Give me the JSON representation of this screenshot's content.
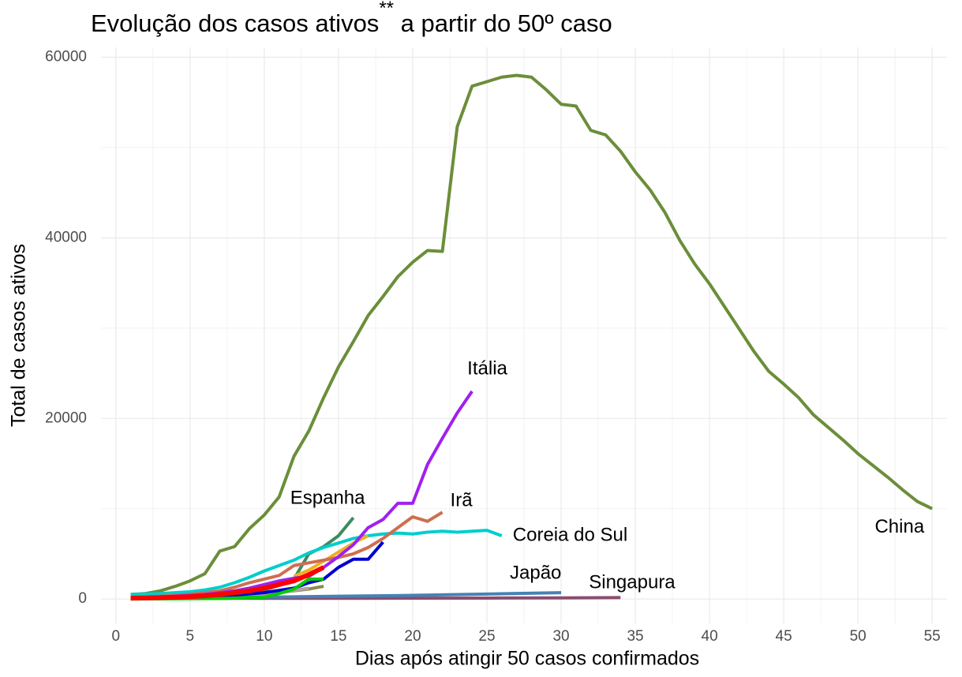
{
  "chart_data": {
    "type": "line",
    "title": [
      "Evolução dos casos ativos",
      "**",
      " a partir do 50º caso"
    ],
    "x_label": "Dias após atingir 50 casos confirmados",
    "y_label": "Total de casos ativos",
    "xlim": [
      -1,
      56
    ],
    "ylim": [
      -2700,
      61100
    ],
    "xticks": [
      0,
      5,
      10,
      15,
      20,
      25,
      30,
      35,
      40,
      45,
      50,
      55
    ],
    "yticks": [
      0,
      20000,
      40000,
      60000
    ],
    "grid": true,
    "series": [
      {
        "name": "China",
        "color": "#6b8e3a",
        "x": [
          1,
          2,
          3,
          4,
          5,
          6,
          7,
          8,
          9,
          10,
          11,
          12,
          13,
          14,
          15,
          16,
          17,
          18,
          19,
          20,
          21,
          22,
          23,
          24,
          25,
          26,
          27,
          28,
          29,
          30,
          31,
          32,
          33,
          34,
          35,
          36,
          37,
          38,
          39,
          40,
          41,
          42,
          43,
          44,
          45,
          46,
          47,
          48,
          49,
          50,
          51,
          52,
          53,
          54,
          55
        ],
        "values": [
          500,
          600,
          900,
          1400,
          2000,
          2800,
          5300,
          5800,
          7800,
          9300,
          11300,
          15800,
          18600,
          22300,
          25700,
          28500,
          31400,
          33500,
          35700,
          37300,
          38600,
          38500,
          52300,
          56800,
          57300,
          57800,
          58000,
          57800,
          56400,
          54800,
          54600,
          51900,
          51400,
          49600,
          47300,
          45300,
          42800,
          39700,
          37100,
          34900,
          32400,
          29900,
          27400,
          25200,
          23800,
          22300,
          20400,
          19000,
          17600,
          16100,
          14800,
          13500,
          12100,
          10800,
          10000
        ]
      },
      {
        "color": "#8b8b4c",
        "x": [
          1,
          2,
          3,
          4,
          5,
          6,
          7,
          8,
          9,
          10,
          11,
          12,
          13,
          14
        ],
        "values": [
          0,
          20,
          40,
          60,
          100,
          150,
          200,
          300,
          400,
          500,
          700,
          900,
          1100,
          1400
        ]
      },
      {
        "color": "#b0a0a0",
        "x": [
          1,
          3,
          5,
          7,
          9,
          11,
          13
        ],
        "values": [
          0,
          50,
          100,
          200,
          400,
          700,
          1200
        ]
      },
      {
        "name": "Singapura",
        "color": "#8b4c6f",
        "x": [
          1,
          5,
          10,
          15,
          20,
          25,
          30,
          34
        ],
        "values": [
          50,
          60,
          70,
          80,
          90,
          100,
          120,
          150
        ]
      },
      {
        "name": "Japão",
        "color": "#4682b4",
        "x": [
          1,
          5,
          10,
          15,
          20,
          25,
          30
        ],
        "values": [
          100,
          150,
          200,
          300,
          400,
          550,
          700
        ]
      },
      {
        "name": "Espanha",
        "color": "#3d8b5f",
        "x": [
          1,
          2,
          3,
          4,
          5,
          6,
          7,
          8,
          9,
          10,
          11,
          12,
          13,
          14,
          15,
          16
        ],
        "values": [
          50,
          80,
          120,
          160,
          200,
          300,
          400,
          600,
          800,
          1000,
          1500,
          2200,
          5000,
          5800,
          7000,
          9000
        ]
      },
      {
        "name": "Coreia do Sul",
        "color": "#00cdcd",
        "x": [
          1,
          2,
          3,
          4,
          5,
          6,
          7,
          8,
          9,
          10,
          11,
          12,
          13,
          14,
          15,
          16,
          17,
          18,
          19,
          20,
          21,
          22,
          23,
          24,
          25,
          26
        ],
        "values": [
          500,
          550,
          600,
          700,
          800,
          1000,
          1300,
          1800,
          2400,
          3100,
          3700,
          4300,
          5100,
          5700,
          6200,
          6700,
          7000,
          7200,
          7300,
          7200,
          7400,
          7500,
          7400,
          7500,
          7600,
          7000
        ]
      },
      {
        "color": "#f0b020",
        "x": [
          12,
          13,
          14,
          15,
          16,
          17
        ],
        "values": [
          2500,
          3200,
          4200,
          5200,
          6200,
          7000
        ]
      },
      {
        "name": "Irã",
        "color": "#cd6f50",
        "x": [
          1,
          2,
          3,
          4,
          5,
          6,
          7,
          8,
          9,
          10,
          11,
          12,
          13,
          14,
          15,
          16,
          17,
          18,
          19,
          20,
          21,
          22
        ],
        "values": [
          100,
          200,
          300,
          400,
          500,
          700,
          900,
          1300,
          1800,
          2200,
          2600,
          3700,
          4000,
          4300,
          4600,
          5000,
          5700,
          6700,
          7900,
          9100,
          8600,
          9600
        ]
      },
      {
        "name": "Itália",
        "color": "#a020f0",
        "x": [
          1,
          2,
          3,
          4,
          5,
          6,
          7,
          8,
          9,
          10,
          11,
          12,
          13,
          14,
          15,
          16,
          17,
          18,
          19,
          20,
          21,
          22,
          23,
          24
        ],
        "values": [
          50,
          100,
          200,
          300,
          400,
          500,
          700,
          900,
          1200,
          1600,
          2000,
          2300,
          2500,
          3500,
          4700,
          6000,
          7900,
          8800,
          10600,
          10600,
          14900,
          17800,
          20600,
          23000
        ]
      },
      {
        "color": "#0000cd",
        "x": [
          1,
          4,
          7,
          10,
          12,
          13,
          14,
          15,
          16,
          17,
          18
        ],
        "values": [
          50,
          150,
          300,
          700,
          1200,
          1800,
          2200,
          3500,
          4400,
          4400,
          6300
        ]
      },
      {
        "color": "#00cc00",
        "x": [
          1,
          4,
          7,
          10,
          11,
          12,
          13,
          14
        ],
        "values": [
          0,
          20,
          50,
          200,
          600,
          1100,
          2200,
          2200
        ]
      },
      {
        "color": "#ff0000",
        "x": [
          1,
          2,
          3,
          4,
          5,
          6,
          7,
          8,
          9,
          10,
          11,
          12,
          13,
          14
        ],
        "values": [
          100,
          120,
          150,
          200,
          250,
          350,
          500,
          700,
          900,
          1200,
          1600,
          2000,
          2700,
          3500
        ]
      }
    ]
  }
}
